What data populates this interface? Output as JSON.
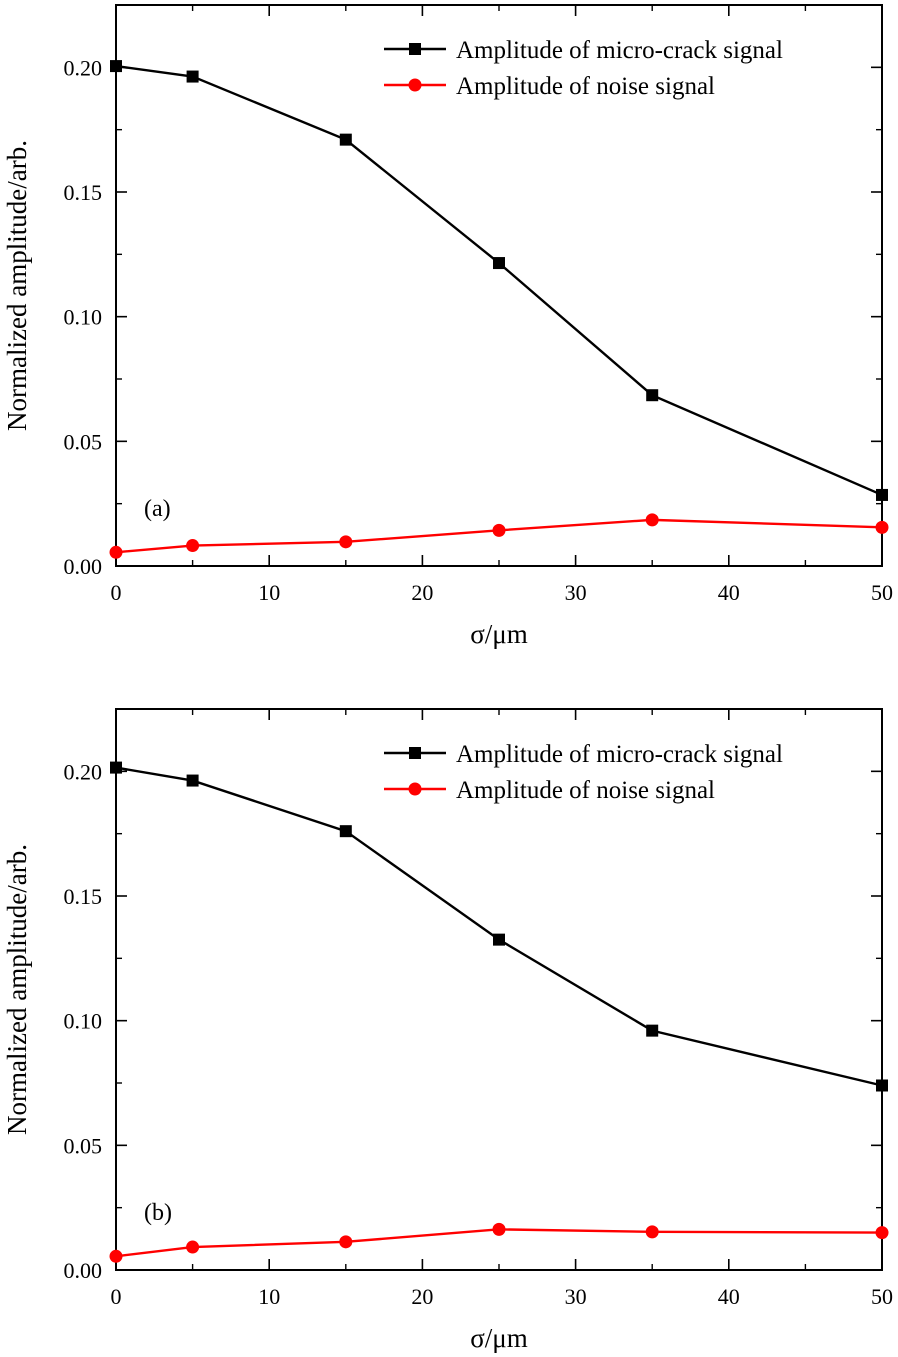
{
  "chart_data": [
    {
      "type": "line",
      "panel_label": "(a)",
      "xlabel": "σ/μm",
      "ylabel": "Normalized amplitude/arb.",
      "xlim": [
        0,
        50
      ],
      "ylim": [
        0,
        0.225
      ],
      "x_ticks": [
        0,
        10,
        20,
        30,
        40,
        50
      ],
      "x_tick_labels": [
        "0",
        "10",
        "20",
        "30",
        "40",
        "50"
      ],
      "y_ticks": [
        0,
        0.05,
        0.1,
        0.15,
        0.2
      ],
      "y_tick_labels": [
        "0.00",
        "0.05",
        "0.10",
        "0.15",
        "0.20"
      ],
      "legend_position": "top-right",
      "grid": false,
      "x": [
        0,
        5,
        15,
        25,
        35,
        50
      ],
      "series": [
        {
          "name": "Amplitude of micro-crack signal",
          "color": "#000000",
          "marker": "square",
          "values": [
            0.2005,
            0.1963,
            0.171,
            0.1215,
            0.0685,
            0.0285
          ]
        },
        {
          "name": "Amplitude of noise signal",
          "color": "#ff0000",
          "marker": "circle",
          "values": [
            0.0055,
            0.0082,
            0.0097,
            0.0143,
            0.0185,
            0.0155
          ]
        }
      ]
    },
    {
      "type": "line",
      "panel_label": "(b)",
      "xlabel": "σ/μm",
      "ylabel": "Normalized amplitude/arb.",
      "xlim": [
        0,
        50
      ],
      "ylim": [
        0,
        0.225
      ],
      "x_ticks": [
        0,
        10,
        20,
        30,
        40,
        50
      ],
      "x_tick_labels": [
        "0",
        "10",
        "20",
        "30",
        "40",
        "50"
      ],
      "y_ticks": [
        0,
        0.05,
        0.1,
        0.15,
        0.2
      ],
      "y_tick_labels": [
        "0.00",
        "0.05",
        "0.10",
        "0.15",
        "0.20"
      ],
      "legend_position": "top-right",
      "grid": false,
      "x": [
        0,
        5,
        15,
        25,
        35,
        50
      ],
      "series": [
        {
          "name": "Amplitude of micro-crack signal",
          "color": "#000000",
          "marker": "square",
          "values": [
            0.2015,
            0.1963,
            0.176,
            0.1325,
            0.096,
            0.074
          ]
        },
        {
          "name": "Amplitude of noise signal",
          "color": "#ff0000",
          "marker": "circle",
          "values": [
            0.0055,
            0.0092,
            0.0113,
            0.0163,
            0.0153,
            0.015
          ]
        }
      ]
    }
  ]
}
